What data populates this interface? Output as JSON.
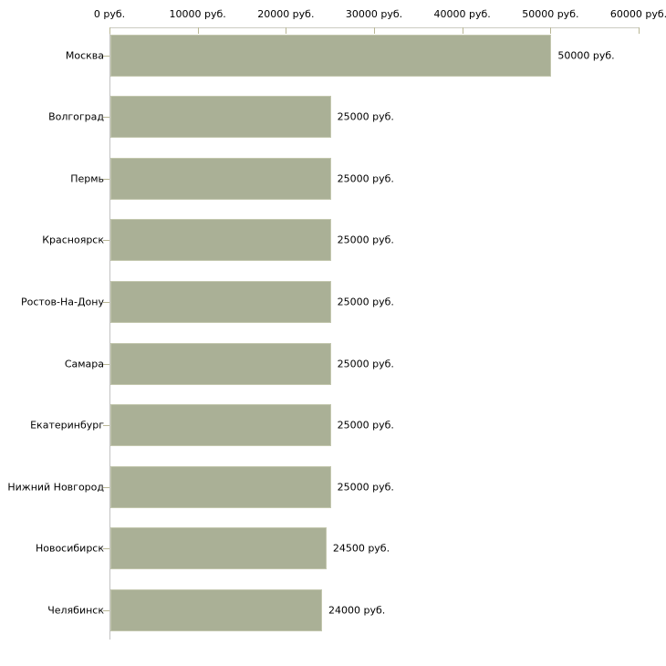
{
  "chart_data": {
    "type": "bar",
    "orientation": "horizontal",
    "title": "",
    "categories": [
      "Москва",
      "Волгоград",
      "Пермь",
      "Красноярск",
      "Ростов-На-Дону",
      "Самара",
      "Екатеринбург",
      "Нижний Новгород",
      "Новосибирск",
      "Челябинск"
    ],
    "values": [
      50000,
      25000,
      25000,
      25000,
      25000,
      25000,
      25000,
      25000,
      24500,
      24000
    ],
    "value_labels": [
      "50000 руб.",
      "25000 руб.",
      "25000 руб.",
      "25000 руб.",
      "25000 руб.",
      "25000 руб.",
      "25000 руб.",
      "25000 руб.",
      "24500 руб.",
      "24000 руб."
    ],
    "unit": "руб.",
    "x_axis": {
      "position": "top",
      "min": 0,
      "max": 60000,
      "tick_values": [
        0,
        10000,
        20000,
        30000,
        40000,
        50000,
        60000
      ],
      "tick_labels": [
        "0 руб.",
        "10000 руб.",
        "20000 руб.",
        "30000 руб.",
        "40000 руб.",
        "50000 руб.",
        "60000 руб."
      ]
    },
    "grid": false,
    "legend": false,
    "colors": {
      "background": "#ffffff",
      "bar_fill": "#aab096",
      "bar_border": "#c3c7ae",
      "axis_line_h": "#ccccc2",
      "axis_line_v": "#c2c2c2",
      "tick_mark": "#b9b795",
      "label_text": "#000000"
    }
  }
}
